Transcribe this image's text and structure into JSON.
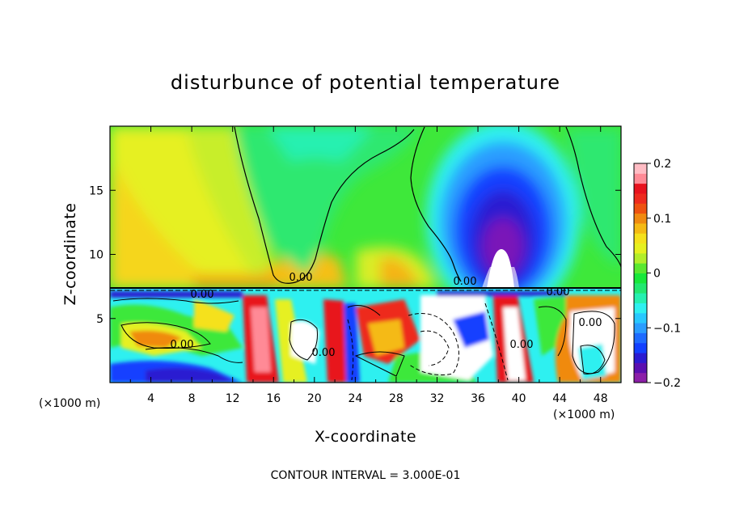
{
  "chart_data": {
    "type": "heatmap",
    "title": "disturbunce of potential temperature",
    "xlabel": "X-coordinate",
    "ylabel": "Z-coordinate",
    "x_unit_label": "(×1000 m)",
    "x_unit_label_right": "(×1000 m)",
    "footer": "CONTOUR INTERVAL = 3.000E-01",
    "xlim": [
      0,
      50
    ],
    "ylim": [
      0,
      20
    ],
    "x_ticks": [
      4,
      8,
      12,
      16,
      20,
      24,
      28,
      32,
      36,
      40,
      44,
      48
    ],
    "x_tick_labels": [
      "4",
      "8",
      "12",
      "16",
      "20",
      "24",
      "28",
      "32",
      "36",
      "40",
      "44",
      "48"
    ],
    "y_ticks": [
      5,
      10,
      15
    ],
    "y_tick_labels": [
      "5",
      "10",
      "15"
    ],
    "colorbar": {
      "range": [
        -0.2,
        0.2
      ],
      "tick_values": [
        0.2,
        0.1,
        0,
        -0.1,
        -0.2
      ],
      "tick_labels": [
        "0.2",
        "0.1",
        "0",
        "−0.1",
        "−0.2"
      ],
      "colors": [
        "#8b1fa8",
        "#5a0fb0",
        "#2b1bd1",
        "#1240ff",
        "#1e6bff",
        "#2a9dff",
        "#28c8ff",
        "#2ef0f0",
        "#25f0b0",
        "#22e870",
        "#18e83a",
        "#5ae830",
        "#b2ee2a",
        "#e6f020",
        "#f5e11c",
        "#f5ba14",
        "#f08a10",
        "#ee5210",
        "#ee2a1e",
        "#e8121e",
        "#ff8a96",
        "#ffbcc4"
      ]
    },
    "contour_labels": [
      "0.00",
      "0.00",
      "0.00",
      "0.00",
      "0.00",
      "0.00",
      "0.00",
      "0.00"
    ],
    "features": {
      "boundary_layer_top_z": 7.3,
      "cold_anomaly_center_x": 38.5,
      "cold_anomaly_top_z": 18,
      "cold_anomaly_base_z": 7.5,
      "cold_anomaly_min": -0.2,
      "upper_left_warm_max": 0.07
    }
  }
}
